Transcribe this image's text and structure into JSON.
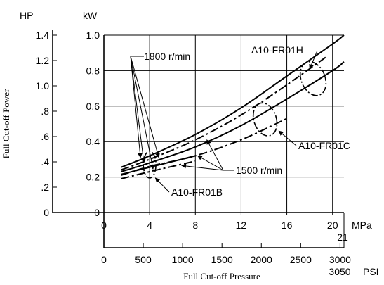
{
  "chart_data": {
    "type": "line",
    "title": "",
    "xlabel": "Full Cut-off Pressure",
    "ylabel": "Full Cut-off  Power",
    "x_unit": "MPa",
    "x_unit_alt": "PSI",
    "y_unit": "kW",
    "y_unit_alt": "HP",
    "xlim": [
      0,
      21
    ],
    "ylim": [
      0,
      1.0
    ],
    "grid": true,
    "x_ticks": [
      "0",
      "4",
      "8",
      "12",
      "16",
      "20"
    ],
    "x_tick_values": [
      0,
      4,
      8,
      12,
      16,
      20
    ],
    "x_end_label": "21",
    "x_ticks_alt": [
      "0",
      "500",
      "1000",
      "1500",
      "2000",
      "2500",
      "3000"
    ],
    "x_tick_alt_values": [
      0,
      500,
      1000,
      1500,
      2000,
      2500,
      3000
    ],
    "x_end_label_alt": "3050",
    "y_ticks": [
      "0",
      "0.2",
      "0.4",
      "0.6",
      "0.8",
      "1.0"
    ],
    "y_tick_values": [
      0,
      0.2,
      0.4,
      0.6,
      0.8,
      1.0
    ],
    "y_ticks_alt": [
      "0",
      ".2",
      ".4",
      ".6",
      ".8",
      "1.0",
      "1.2",
      "1.4"
    ],
    "y_tick_alt_values": [
      0,
      0.2,
      0.4,
      0.6,
      0.8,
      1.0,
      1.2,
      1.4
    ],
    "series": [
      {
        "name": "A10-FR01H",
        "style": "solid",
        "speed": "1800 r/min",
        "x": [
          1.5,
          4,
          8,
          12,
          16,
          20,
          21
        ],
        "y": [
          0.255,
          0.32,
          0.44,
          0.59,
          0.77,
          0.95,
          1.0
        ]
      },
      {
        "name": "A10-FR01H",
        "style": "dashdot",
        "speed": "1500 r/min",
        "x": [
          1.5,
          4,
          8,
          12,
          16,
          19.5
        ],
        "y": [
          0.24,
          0.3,
          0.41,
          0.55,
          0.72,
          0.88
        ]
      },
      {
        "name": "A10-FR01C",
        "style": "solid",
        "speed": "1800 r/min",
        "x": [
          1.5,
          4,
          8,
          12,
          16,
          20,
          21
        ],
        "y": [
          0.23,
          0.28,
          0.37,
          0.49,
          0.64,
          0.8,
          0.85
        ]
      },
      {
        "name": "A10-FR01C",
        "style": "dashdot",
        "speed": "1500 r/min",
        "x": [
          1.5,
          4,
          8,
          12,
          16
        ],
        "y": [
          0.21,
          0.26,
          0.32,
          0.41,
          0.53
        ]
      },
      {
        "name": "A10-FR01B",
        "style": "solid",
        "speed": "1800 r/min",
        "x": [
          1.5,
          4,
          8
        ],
        "y": [
          0.215,
          0.255,
          0.32
        ]
      },
      {
        "name": "A10-FR01B",
        "style": "dashdot",
        "speed": "1500 r/min",
        "x": [
          1.5,
          4,
          8
        ],
        "y": [
          0.19,
          0.23,
          0.29
        ]
      }
    ],
    "annotations": [
      {
        "text": "1800 r/min"
      },
      {
        "text": "1500 r/min"
      },
      {
        "text": "A10-FR01H"
      },
      {
        "text": "A10-FR01C"
      },
      {
        "text": "A10-FR01B"
      }
    ]
  }
}
